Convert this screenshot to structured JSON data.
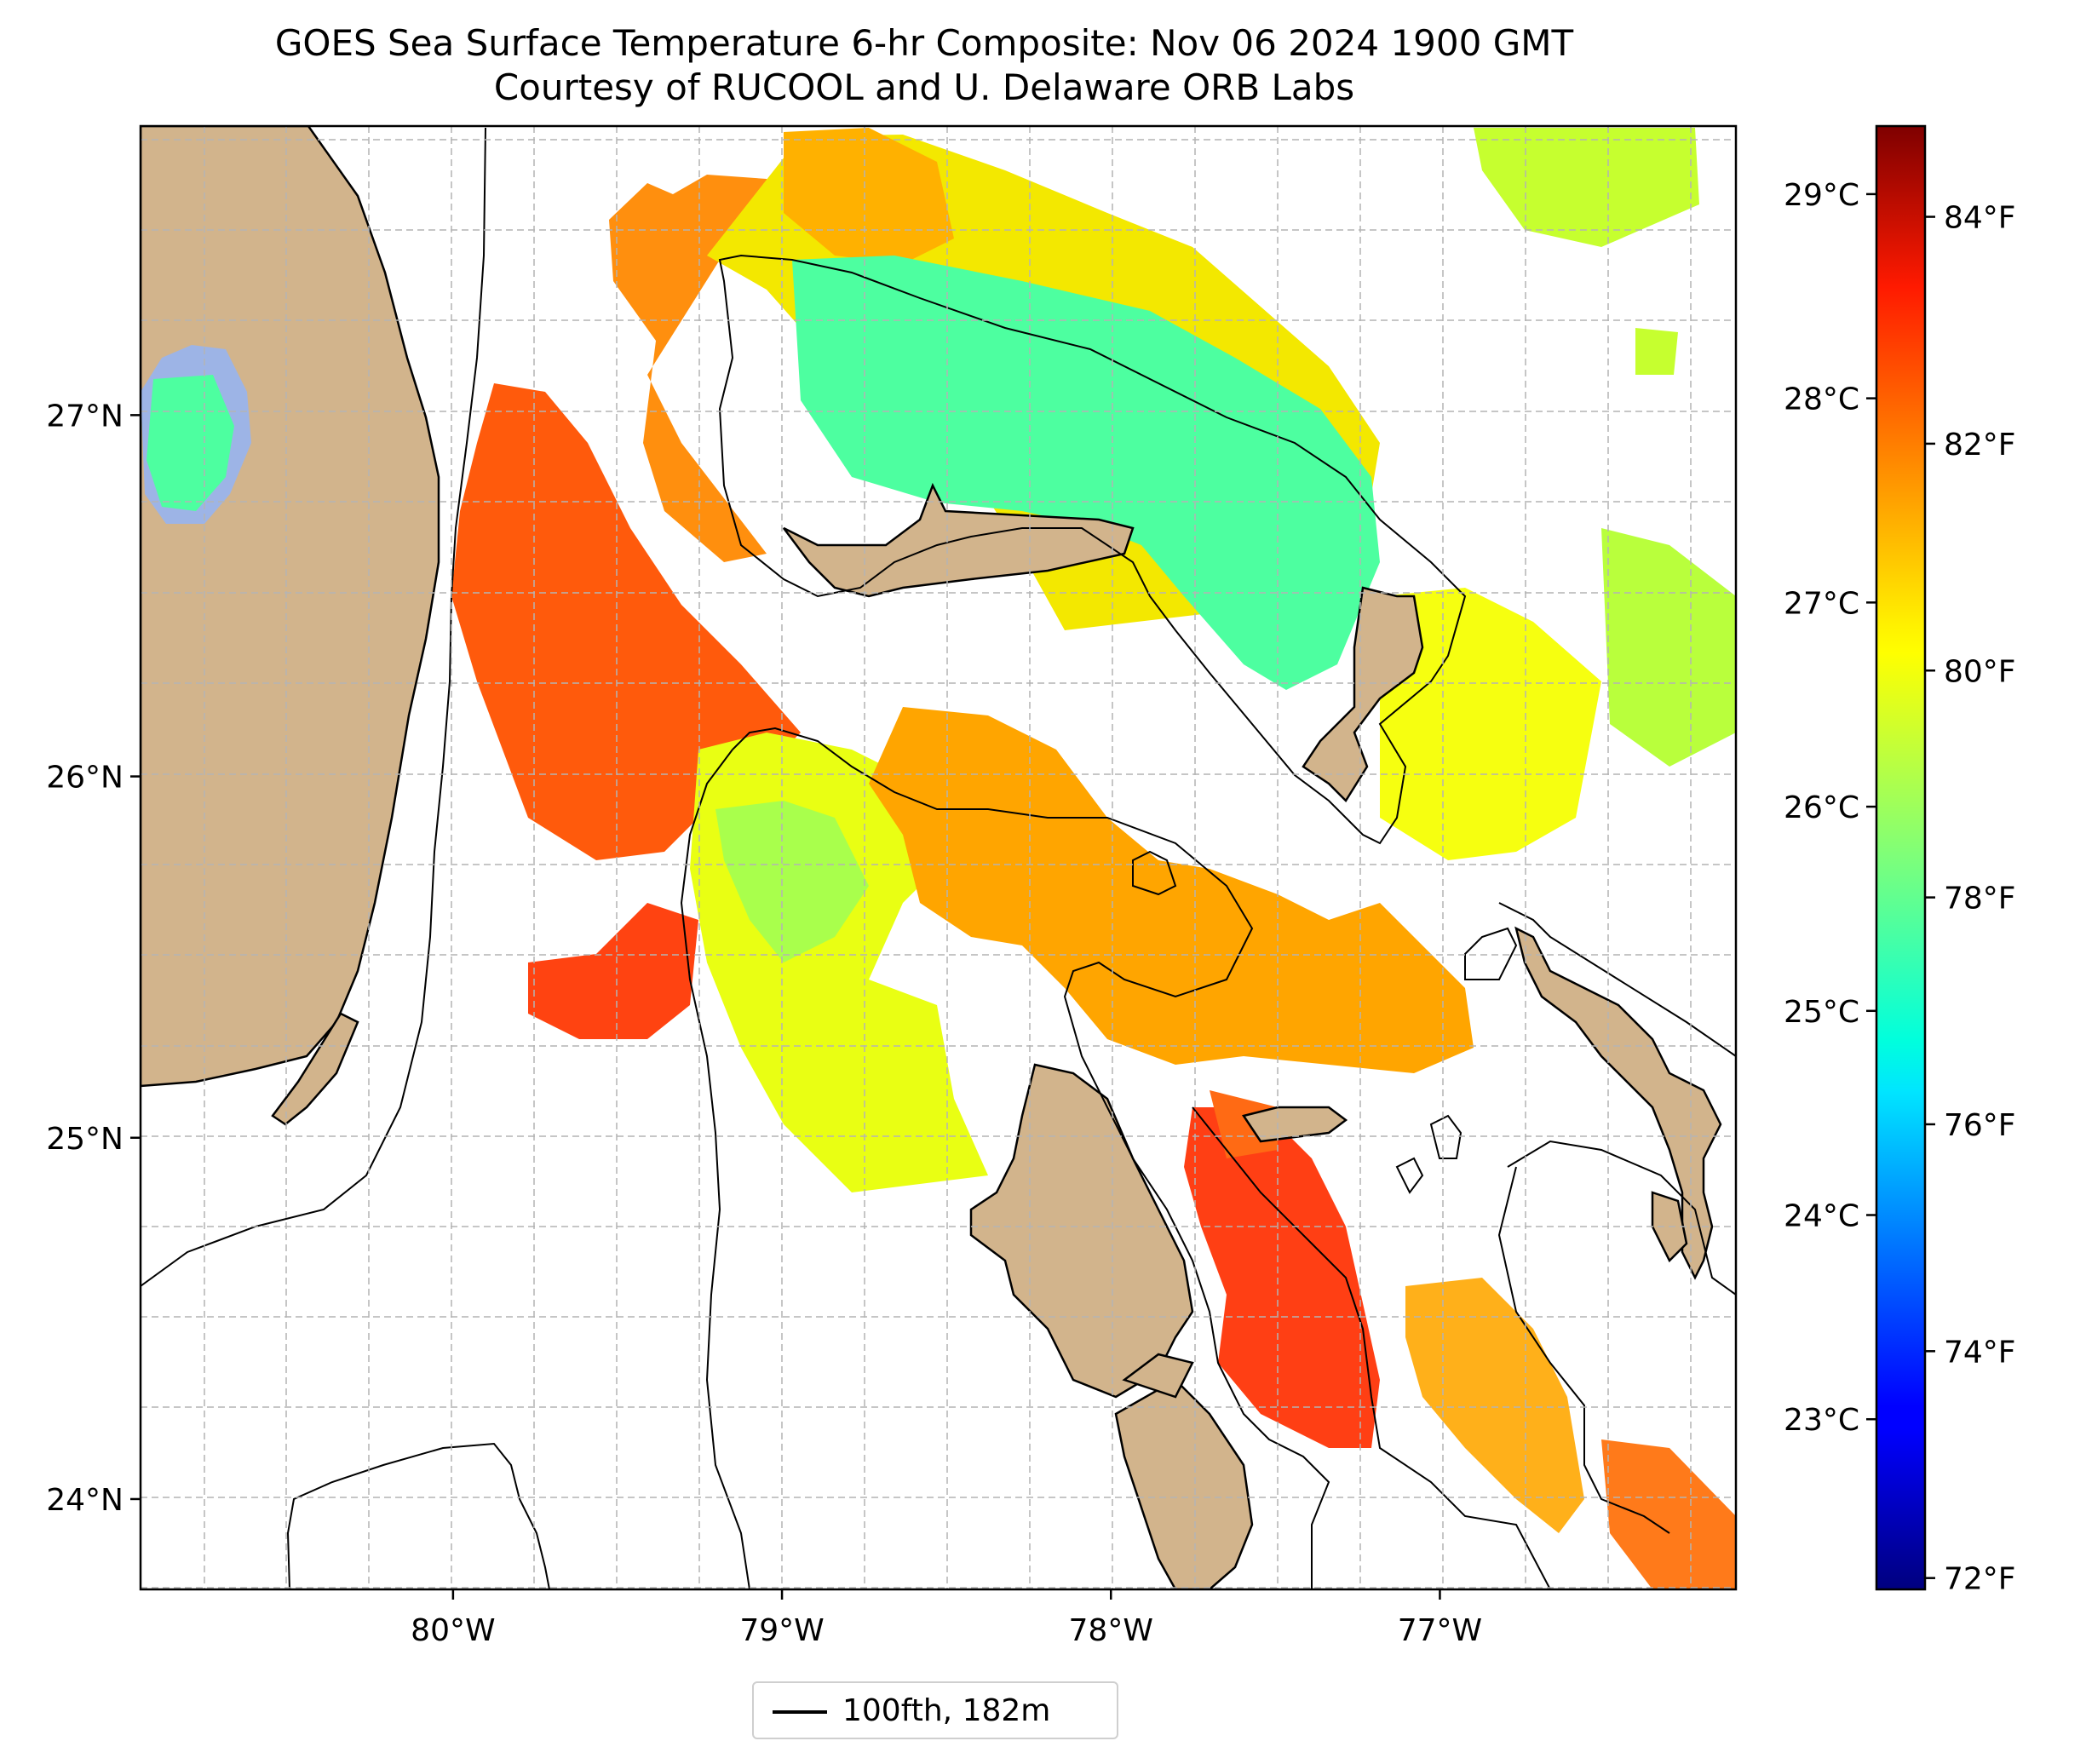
{
  "title": {
    "line1": "GOES Sea Surface Temperature 6-hr Composite: Nov 06 2024 1900 GMT",
    "line2": "Courtesy of RUCOOL and U. Delaware ORB Labs"
  },
  "map": {
    "lon_range": [
      -80.95,
      -76.1
    ],
    "lat_range": [
      23.75,
      27.8
    ],
    "lon_ticks": [
      {
        "value": -80,
        "label": "80°W"
      },
      {
        "value": -79,
        "label": "79°W"
      },
      {
        "value": -78,
        "label": "78°W"
      },
      {
        "value": -77,
        "label": "77°W"
      }
    ],
    "lat_ticks": [
      {
        "value": 27,
        "label": "27°N"
      },
      {
        "value": 26,
        "label": "26°N"
      },
      {
        "value": 25,
        "label": "25°N"
      },
      {
        "value": 24,
        "label": "24°N"
      }
    ],
    "grid": true,
    "colors": {
      "land": "#d2b48c",
      "coast": "#000000",
      "lake": "#9db4e6",
      "grid": "#b4b4b4"
    }
  },
  "colorbar": {
    "fahrenheit_ticks": [
      {
        "value": 84,
        "label": "84°F"
      },
      {
        "value": 82,
        "label": "82°F"
      },
      {
        "value": 80,
        "label": "80°F"
      },
      {
        "value": 78,
        "label": "78°F"
      },
      {
        "value": 76,
        "label": "76°F"
      },
      {
        "value": 74,
        "label": "74°F"
      },
      {
        "value": 72,
        "label": "72°F"
      }
    ],
    "celsius_ticks": [
      {
        "value": 29,
        "label": "29°C"
      },
      {
        "value": 28,
        "label": "28°C"
      },
      {
        "value": 27,
        "label": "27°C"
      },
      {
        "value": 26,
        "label": "26°C"
      },
      {
        "value": 25,
        "label": "25°C"
      },
      {
        "value": 24,
        "label": "24°C"
      },
      {
        "value": 23,
        "label": "23°C"
      }
    ],
    "range_f": [
      71.9,
      84.8
    ],
    "colormap": "jet"
  },
  "legend": {
    "label": "100fth, 182m",
    "line_color": "#000000"
  }
}
